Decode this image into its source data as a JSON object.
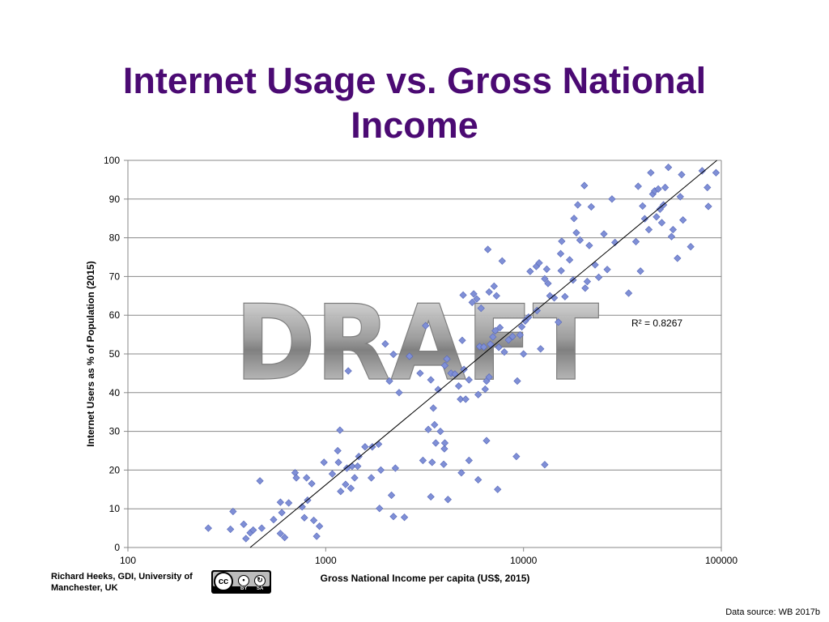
{
  "slide": {
    "title_line1": "Internet Usage vs. Gross National",
    "title_line2": "Income",
    "attribution": "Richard Heeks, GDI, University of Manchester, UK",
    "license_badge": {
      "mark": "cc",
      "label1": "BY",
      "label2": "SA",
      "icons": [
        "cc-icon",
        "person-icon",
        "share-alike-icon"
      ]
    },
    "source": "Data source: WB 2017b",
    "watermark": "DRAFT",
    "colors": {
      "title": "#4b0a73",
      "marker": "#7f8fd6",
      "marker_edge": "#5566b8",
      "gridline": "#888888"
    }
  },
  "chart_data": {
    "type": "scatter",
    "xlabel": "Gross National Income per capita (US$, 2015)",
    "ylabel": "Internet Users as % of Population (2015)",
    "xscale": "log",
    "xlim": [
      100,
      100000
    ],
    "ylim": [
      0,
      100
    ],
    "xticks": [
      "100",
      "1000",
      "10000",
      "100000"
    ],
    "yticks": [
      "0",
      "10",
      "20",
      "30",
      "40",
      "50",
      "60",
      "70",
      "80",
      "90",
      "100"
    ],
    "grid": "horizontal",
    "trendline": {
      "type": "log-linear",
      "r2_label": "R² = 0.8267",
      "points": [
        [
          415,
          0
        ],
        [
          95000,
          100
        ]
      ]
    },
    "points": [
      [
        255,
        5
      ],
      [
        330,
        4.7
      ],
      [
        340,
        9.3
      ],
      [
        385,
        6
      ],
      [
        395,
        2.3
      ],
      [
        415,
        3.8
      ],
      [
        430,
        4.5
      ],
      [
        465,
        17.2
      ],
      [
        475,
        5
      ],
      [
        545,
        7.2
      ],
      [
        590,
        3.6
      ],
      [
        590,
        11.7
      ],
      [
        600,
        9
      ],
      [
        620,
        2.6
      ],
      [
        650,
        11.5
      ],
      [
        700,
        19.3
      ],
      [
        710,
        18
      ],
      [
        760,
        10.5
      ],
      [
        780,
        7.7
      ],
      [
        800,
        18
      ],
      [
        810,
        12.2
      ],
      [
        850,
        16.5
      ],
      [
        870,
        7
      ],
      [
        900,
        2.9
      ],
      [
        930,
        5.5
      ],
      [
        980,
        22
      ],
      [
        1080,
        19
      ],
      [
        1150,
        25
      ],
      [
        1160,
        22
      ],
      [
        1180,
        30.3
      ],
      [
        1190,
        14.5
      ],
      [
        1260,
        16.3
      ],
      [
        1280,
        20.5
      ],
      [
        1340,
        15.3
      ],
      [
        1360,
        21
      ],
      [
        1400,
        18
      ],
      [
        1450,
        21
      ],
      [
        1470,
        23.5
      ],
      [
        1580,
        26
      ],
      [
        1700,
        18
      ],
      [
        1720,
        26
      ],
      [
        1850,
        26.7
      ],
      [
        1870,
        10.1
      ],
      [
        1900,
        20
      ],
      [
        2150,
        13.5
      ],
      [
        2200,
        8
      ],
      [
        2250,
        20.5
      ],
      [
        2350,
        40
      ],
      [
        2500,
        7.8
      ],
      [
        3100,
        22.5
      ],
      [
        3300,
        30.5
      ],
      [
        3400,
        13.1
      ],
      [
        3450,
        22
      ],
      [
        3550,
        31.7
      ],
      [
        3600,
        27
      ],
      [
        3800,
        30
      ],
      [
        3950,
        21.5
      ],
      [
        3980,
        25.5
      ],
      [
        4000,
        27
      ],
      [
        4150,
        12.4
      ],
      [
        4850,
        19.3
      ],
      [
        5300,
        22.5
      ],
      [
        5900,
        17.5
      ],
      [
        6500,
        27.6
      ],
      [
        7400,
        15
      ],
      [
        9200,
        23.5
      ],
      [
        12800,
        21.4
      ],
      [
        1300,
        45.6
      ],
      [
        2000,
        52.6
      ],
      [
        2100,
        43
      ],
      [
        2200,
        49.9
      ],
      [
        2650,
        49.4
      ],
      [
        3000,
        45
      ],
      [
        3200,
        57.3
      ],
      [
        3400,
        43.3
      ],
      [
        3500,
        36
      ],
      [
        3700,
        40.8
      ],
      [
        4000,
        47
      ],
      [
        4100,
        48.7
      ],
      [
        4300,
        45
      ],
      [
        4500,
        44.8
      ],
      [
        4700,
        41.7
      ],
      [
        4800,
        38.3
      ],
      [
        4900,
        53.5
      ],
      [
        5000,
        46
      ],
      [
        5100,
        38.3
      ],
      [
        5300,
        43.3
      ],
      [
        5600,
        65.5
      ],
      [
        5900,
        39.5
      ],
      [
        6000,
        51.9
      ],
      [
        6300,
        51.8
      ],
      [
        6400,
        40.9
      ],
      [
        6500,
        43
      ],
      [
        6700,
        44
      ],
      [
        6800,
        52.5
      ],
      [
        7000,
        54.4
      ],
      [
        7200,
        56
      ],
      [
        7500,
        51.7
      ],
      [
        7600,
        56.8
      ],
      [
        7800,
        74
      ],
      [
        8000,
        50.5
      ],
      [
        8400,
        53.6
      ],
      [
        8800,
        54.5
      ],
      [
        9300,
        43
      ],
      [
        9600,
        54.9
      ],
      [
        10000,
        50
      ],
      [
        9800,
        57
      ],
      [
        10200,
        58.5
      ],
      [
        10600,
        59.5
      ],
      [
        4950,
        65.2
      ],
      [
        5500,
        63.3
      ],
      [
        5800,
        64.2
      ],
      [
        6100,
        61.8
      ],
      [
        6700,
        66
      ],
      [
        6600,
        77
      ],
      [
        7100,
        67.5
      ],
      [
        7300,
        65
      ],
      [
        10800,
        71.3
      ],
      [
        11600,
        72.6
      ],
      [
        12000,
        73.5
      ],
      [
        11700,
        61.2
      ],
      [
        12200,
        51.3
      ],
      [
        12800,
        69.4
      ],
      [
        13100,
        71.9
      ],
      [
        13300,
        68.2
      ],
      [
        13600,
        65
      ],
      [
        14300,
        64.5
      ],
      [
        15000,
        58.2
      ],
      [
        15400,
        75.9
      ],
      [
        15600,
        79.1
      ],
      [
        15500,
        71.5
      ],
      [
        16200,
        64.8
      ],
      [
        17100,
        74.3
      ],
      [
        17800,
        69.1
      ],
      [
        18000,
        85
      ],
      [
        18500,
        81.3
      ],
      [
        18800,
        88.5
      ],
      [
        19300,
        79.4
      ],
      [
        20300,
        93.5
      ],
      [
        20500,
        67
      ],
      [
        21000,
        68.7
      ],
      [
        21500,
        78
      ],
      [
        22000,
        88
      ],
      [
        23000,
        73
      ],
      [
        24000,
        69.8
      ],
      [
        25500,
        81
      ],
      [
        26500,
        71.8
      ],
      [
        28000,
        90
      ],
      [
        29000,
        78.8
      ],
      [
        34000,
        65.7
      ],
      [
        37000,
        79
      ],
      [
        38000,
        93.3
      ],
      [
        39000,
        71.4
      ],
      [
        40000,
        88.2
      ],
      [
        41000,
        84.9
      ],
      [
        43000,
        82.1
      ],
      [
        44000,
        96.8
      ],
      [
        45000,
        91.3
      ],
      [
        46000,
        92.1
      ],
      [
        47000,
        85.4
      ],
      [
        48000,
        92.6
      ],
      [
        49000,
        87.4
      ],
      [
        50000,
        83.9
      ],
      [
        51000,
        88.5
      ],
      [
        52000,
        93
      ],
      [
        54000,
        98.2
      ],
      [
        56000,
        80.3
      ],
      [
        57000,
        82.1
      ],
      [
        60000,
        74.7
      ],
      [
        62000,
        90.6
      ],
      [
        63000,
        96.3
      ],
      [
        64000,
        84.6
      ],
      [
        70000,
        77.7
      ],
      [
        80000,
        97.3
      ],
      [
        85000,
        93
      ],
      [
        86000,
        88.1
      ],
      [
        94000,
        96.8
      ]
    ]
  }
}
